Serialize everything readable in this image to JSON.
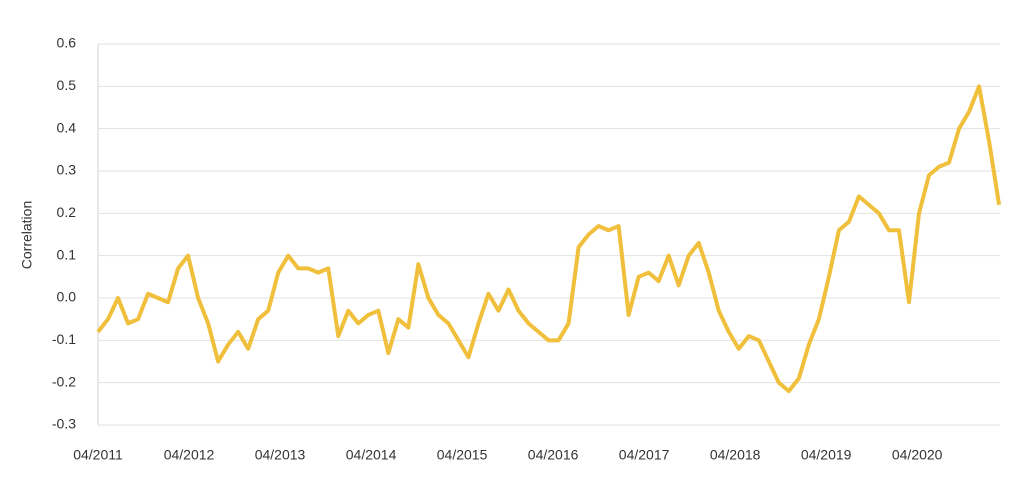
{
  "chart_data": {
    "type": "line",
    "y_label": "Correlation",
    "x": [
      2011.25,
      2011.36,
      2011.47,
      2011.58,
      2011.69,
      2011.8,
      2011.91,
      2012.02,
      2012.13,
      2012.24,
      2012.35,
      2012.46,
      2012.57,
      2012.68,
      2012.79,
      2012.9,
      2013.01,
      2013.12,
      2013.23,
      2013.34,
      2013.45,
      2013.56,
      2013.67,
      2013.78,
      2013.89,
      2014,
      2014.11,
      2014.22,
      2014.33,
      2014.44,
      2014.55,
      2014.66,
      2014.77,
      2014.88,
      2014.99,
      2015.1,
      2015.21,
      2015.32,
      2015.43,
      2015.54,
      2015.65,
      2015.76,
      2015.87,
      2015.98,
      2016.09,
      2016.2,
      2016.31,
      2016.42,
      2016.53,
      2016.64,
      2016.75,
      2016.86,
      2016.97,
      2017.08,
      2017.19,
      2017.3,
      2017.41,
      2017.52,
      2017.63,
      2017.74,
      2017.85,
      2017.96,
      2018.07,
      2018.18,
      2018.29,
      2018.4,
      2018.51,
      2018.62,
      2018.73,
      2018.84,
      2018.95,
      2019.06,
      2019.17,
      2019.28,
      2019.39,
      2019.5,
      2019.61,
      2019.72,
      2019.83,
      2019.94,
      2020.05,
      2020.16,
      2020.27,
      2020.38,
      2020.49,
      2020.6,
      2020.71,
      2020.82,
      2020.93,
      2021.04,
      2021.15
    ],
    "values": [
      -0.08,
      -0.05,
      0,
      -0.06,
      -0.05,
      0.01,
      0,
      -0.01,
      0.07,
      0.1,
      0,
      -0.06,
      -0.15,
      -0.11,
      -0.08,
      -0.12,
      -0.05,
      -0.03,
      0.06,
      0.1,
      0.07,
      0.07,
      0.06,
      0.07,
      -0.09,
      -0.03,
      -0.06,
      -0.04,
      -0.03,
      -0.13,
      -0.05,
      -0.07,
      0.08,
      0,
      -0.04,
      -0.06,
      -0.1,
      -0.14,
      -0.06,
      0.01,
      -0.03,
      0.02,
      -0.03,
      -0.06,
      -0.08,
      -0.1,
      -0.1,
      -0.06,
      0.12,
      0.15,
      0.17,
      0.16,
      0.17,
      -0.04,
      0.05,
      0.06,
      0.04,
      0.1,
      0.03,
      0.1,
      0.13,
      0.06,
      -0.03,
      -0.08,
      -0.12,
      -0.09,
      -0.1,
      -0.15,
      -0.2,
      -0.22,
      -0.19,
      -0.11,
      -0.05,
      0.05,
      0.16,
      0.18,
      0.24,
      0.22,
      0.2,
      0.16,
      0.16,
      -0.01,
      0.2,
      0.29,
      0.31,
      0.32,
      0.4,
      0.44,
      0.5,
      0.37,
      0.22
    ],
    "color": "#f0bf3c",
    "xlim": [
      2011.25,
      2021.16
    ],
    "xticks": [
      {
        "value": 2011.25,
        "label": "04/2011"
      },
      {
        "value": 2012.25,
        "label": "04/2012"
      },
      {
        "value": 2013.25,
        "label": "04/2013"
      },
      {
        "value": 2014.25,
        "label": "04/2014"
      },
      {
        "value": 2015.25,
        "label": "04/2015"
      },
      {
        "value": 2016.25,
        "label": "04/2016"
      },
      {
        "value": 2017.25,
        "label": "04/2017"
      },
      {
        "value": 2018.25,
        "label": "04/2018"
      },
      {
        "value": 2019.25,
        "label": "04/2019"
      },
      {
        "value": 2020.25,
        "label": "04/2020"
      }
    ],
    "ylim": [
      -0.3,
      0.6
    ],
    "yticks": [
      0.6,
      0.5,
      0.4,
      0.3,
      0.2,
      0.1,
      {
        "value": 0,
        "label": "0.0"
      },
      -0.1,
      -0.2,
      -0.3
    ],
    "grid": true
  }
}
